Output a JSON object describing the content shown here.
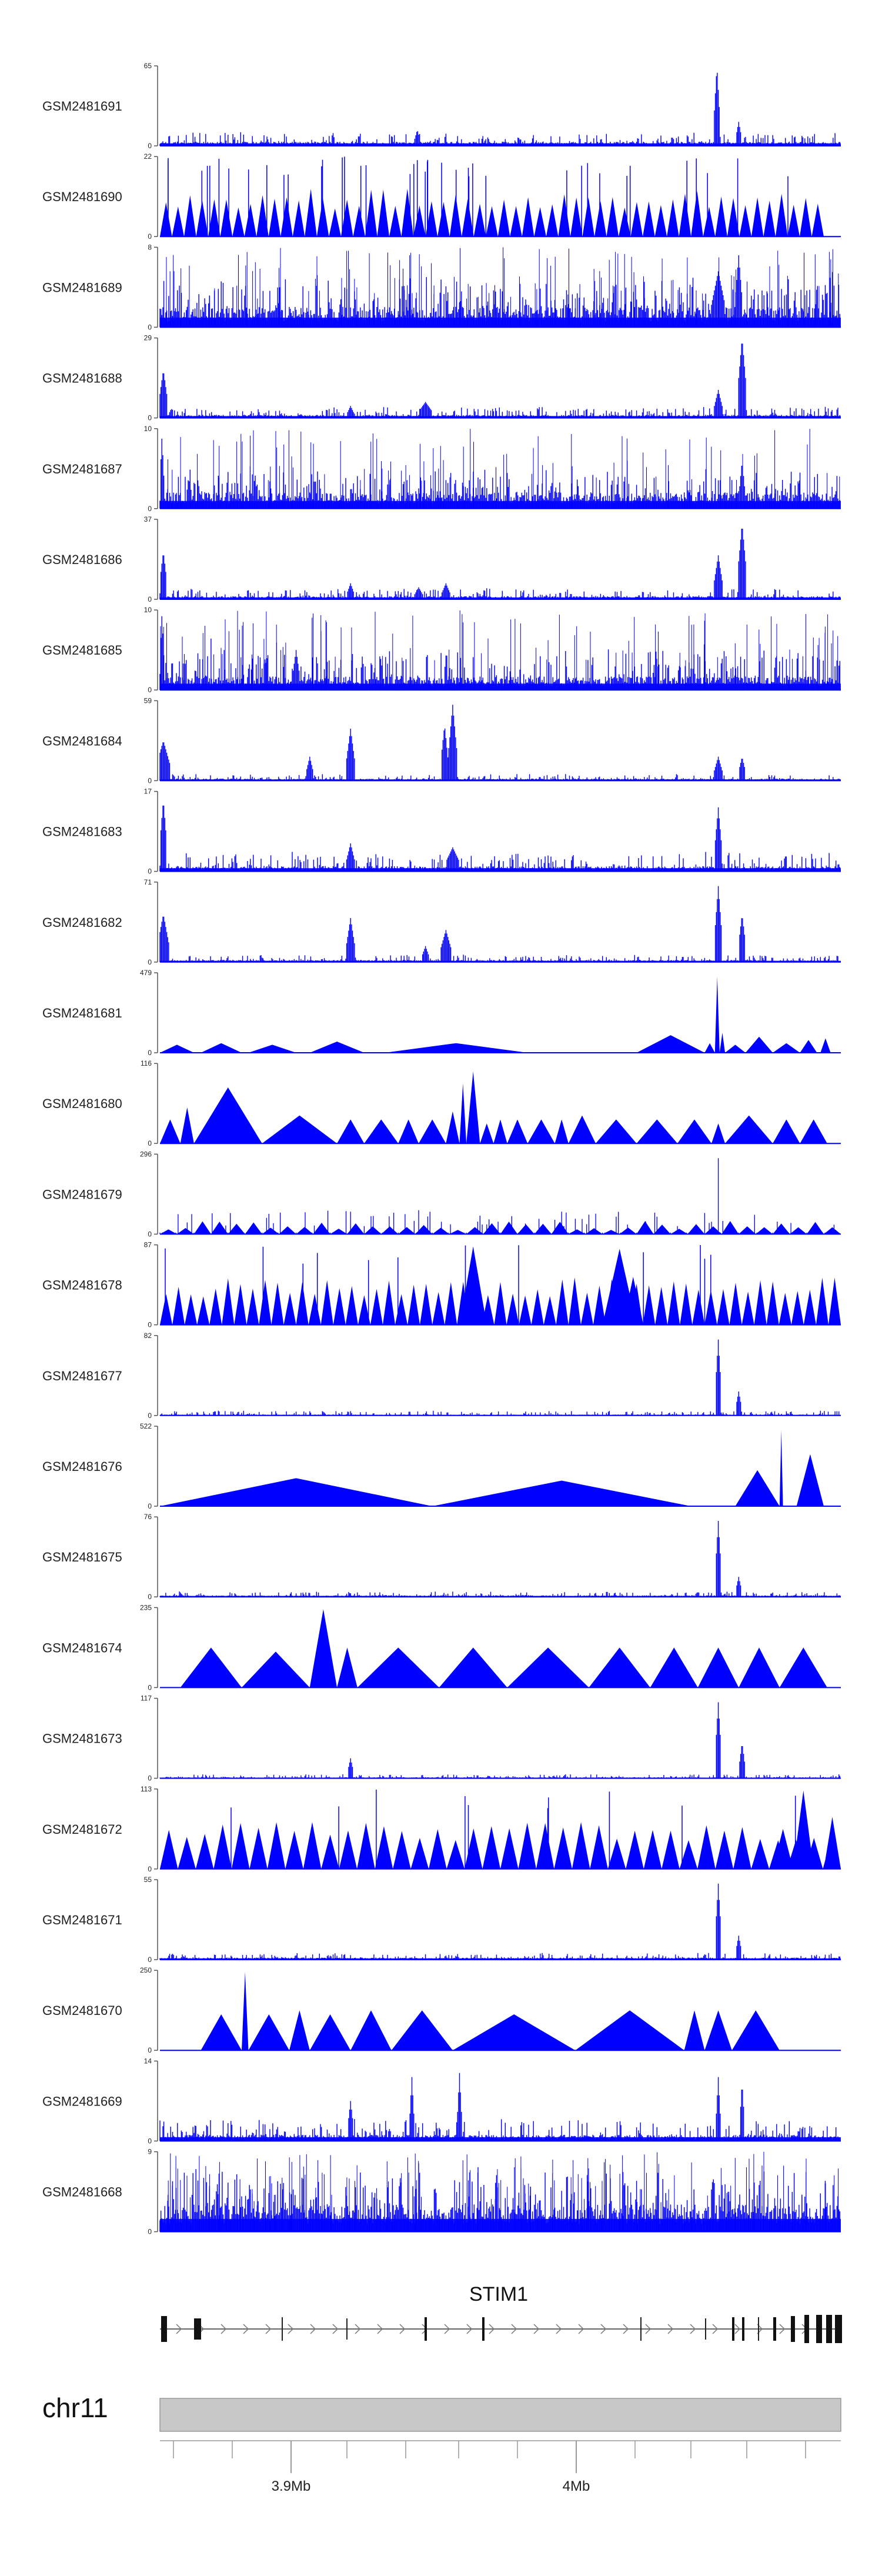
{
  "chart_data": {
    "type": "area",
    "tracks": [
      {
        "name": "GSM2481691",
        "ymax": "65",
        "max": 65,
        "style": "noise",
        "base": 0.04,
        "noise": 0.12,
        "peaks": [
          [
            0.818,
            1.0,
            0.004
          ],
          [
            0.85,
            0.3,
            0.004
          ],
          [
            0.378,
            0.2,
            0.004
          ]
        ]
      },
      {
        "name": "GSM2481690",
        "ymax": "22",
        "max": 22,
        "style": "triangles",
        "count": 55,
        "spikes": 40,
        "end": 0.975
      },
      {
        "name": "GSM2481689",
        "ymax": "8",
        "max": 8,
        "style": "dense",
        "base": 0.15,
        "noise": 0.4,
        "spikes": 120,
        "peaks": [
          [
            0.82,
            0.7,
            0.01
          ],
          [
            0.85,
            0.9,
            0.005
          ]
        ]
      },
      {
        "name": "GSM2481688",
        "ymax": "29",
        "max": 29,
        "style": "noise",
        "base": 0.03,
        "noise": 0.1,
        "peaks": [
          [
            0.005,
            0.6,
            0.006
          ],
          [
            0.82,
            0.35,
            0.006
          ],
          [
            0.855,
            1.0,
            0.006
          ],
          [
            0.39,
            0.2,
            0.01
          ],
          [
            0.28,
            0.15,
            0.005
          ]
        ]
      },
      {
        "name": "GSM2481687",
        "ymax": "10",
        "max": 10,
        "style": "dense",
        "base": 0.12,
        "noise": 0.3,
        "spikes": 90,
        "peaks": [
          [
            0.003,
            0.9,
            0.003
          ],
          [
            0.855,
            0.6,
            0.004
          ]
        ]
      },
      {
        "name": "GSM2481686",
        "ymax": "37",
        "max": 37,
        "style": "noise",
        "base": 0.03,
        "noise": 0.1,
        "peaks": [
          [
            0.82,
            0.55,
            0.006
          ],
          [
            0.855,
            0.95,
            0.006
          ],
          [
            0.005,
            0.6,
            0.005
          ],
          [
            0.28,
            0.2,
            0.005
          ],
          [
            0.42,
            0.2,
            0.006
          ],
          [
            0.38,
            0.15,
            0.006
          ]
        ]
      },
      {
        "name": "GSM2481685",
        "ymax": "10",
        "max": 10,
        "style": "dense",
        "base": 0.1,
        "noise": 0.35,
        "spikes": 100,
        "peaks": [
          [
            0.003,
            0.95,
            0.003
          ],
          [
            0.2,
            0.5,
            0.005
          ]
        ]
      },
      {
        "name": "GSM2481684",
        "ymax": "59",
        "max": 59,
        "style": "noise",
        "base": 0.02,
        "noise": 0.06,
        "peaks": [
          [
            0.43,
            0.95,
            0.006
          ],
          [
            0.418,
            0.7,
            0.005
          ],
          [
            0.28,
            0.65,
            0.006
          ],
          [
            0.005,
            0.5,
            0.01
          ],
          [
            0.22,
            0.3,
            0.005
          ],
          [
            0.82,
            0.3,
            0.006
          ],
          [
            0.855,
            0.3,
            0.005
          ]
        ]
      },
      {
        "name": "GSM2481683",
        "ymax": "17",
        "max": 17,
        "style": "noise",
        "base": 0.05,
        "noise": 0.18,
        "peaks": [
          [
            0.82,
            0.8,
            0.005
          ],
          [
            0.005,
            0.9,
            0.005
          ],
          [
            0.28,
            0.35,
            0.006
          ],
          [
            0.43,
            0.3,
            0.01
          ]
        ]
      },
      {
        "name": "GSM2481682",
        "ymax": "71",
        "max": 71,
        "style": "noise",
        "base": 0.02,
        "noise": 0.07,
        "peaks": [
          [
            0.82,
            0.95,
            0.005
          ],
          [
            0.855,
            0.6,
            0.005
          ],
          [
            0.005,
            0.6,
            0.008
          ],
          [
            0.28,
            0.55,
            0.006
          ],
          [
            0.42,
            0.4,
            0.008
          ],
          [
            0.39,
            0.2,
            0.005
          ]
        ]
      },
      {
        "name": "GSM2481681",
        "ymax": "479",
        "max": 479,
        "style": "sparse",
        "tris": [
          [
            0.0,
            0.05,
            0.1
          ],
          [
            0.06,
            0.12,
            0.12
          ],
          [
            0.13,
            0.2,
            0.1
          ],
          [
            0.22,
            0.3,
            0.14
          ],
          [
            0.33,
            0.54,
            0.12
          ],
          [
            0.7,
            0.8,
            0.22
          ],
          [
            0.8,
            0.815,
            0.12
          ],
          [
            0.815,
            0.822,
            0.95
          ],
          [
            0.822,
            0.83,
            0.25
          ],
          [
            0.83,
            0.86,
            0.1
          ],
          [
            0.86,
            0.9,
            0.2
          ],
          [
            0.9,
            0.94,
            0.12
          ],
          [
            0.94,
            0.965,
            0.16
          ],
          [
            0.97,
            0.985,
            0.18
          ]
        ]
      },
      {
        "name": "GSM2481680",
        "ymax": "116",
        "max": 116,
        "style": "sparse",
        "tris": [
          [
            0.0,
            0.03,
            0.3
          ],
          [
            0.03,
            0.05,
            0.45
          ],
          [
            0.05,
            0.15,
            0.7
          ],
          [
            0.15,
            0.26,
            0.35
          ],
          [
            0.26,
            0.3,
            0.3
          ],
          [
            0.3,
            0.35,
            0.3
          ],
          [
            0.35,
            0.38,
            0.3
          ],
          [
            0.38,
            0.42,
            0.3
          ],
          [
            0.42,
            0.44,
            0.4
          ],
          [
            0.44,
            0.45,
            0.75
          ],
          [
            0.45,
            0.47,
            0.9
          ],
          [
            0.47,
            0.49,
            0.25
          ],
          [
            0.49,
            0.51,
            0.3
          ],
          [
            0.51,
            0.54,
            0.3
          ],
          [
            0.54,
            0.58,
            0.3
          ],
          [
            0.58,
            0.6,
            0.3
          ],
          [
            0.6,
            0.64,
            0.35
          ],
          [
            0.64,
            0.7,
            0.3
          ],
          [
            0.7,
            0.76,
            0.3
          ],
          [
            0.76,
            0.81,
            0.3
          ],
          [
            0.81,
            0.83,
            0.25
          ],
          [
            0.83,
            0.9,
            0.35
          ],
          [
            0.9,
            0.94,
            0.3
          ],
          [
            0.94,
            0.98,
            0.3
          ]
        ]
      },
      {
        "name": "GSM2481679",
        "ymax": "296",
        "max": 296,
        "style": "mixed",
        "count": 40,
        "peaks": [
          [
            0.82,
            0.95,
            0.003
          ],
          [
            0.38,
            0.3,
            0.003
          ],
          [
            0.36,
            0.25,
            0.003
          ]
        ]
      },
      {
        "name": "GSM2481678",
        "ymax": "87",
        "max": 87,
        "style": "triangles",
        "count": 55,
        "spikes": 12,
        "end": 1.0,
        "big": [
          [
            0.44,
            0.48,
            0.98
          ],
          [
            0.65,
            0.7,
            0.95
          ],
          [
            0.68,
            0.71,
            0.6
          ]
        ]
      },
      {
        "name": "GSM2481677",
        "ymax": "82",
        "max": 82,
        "style": "noise",
        "base": 0.01,
        "noise": 0.05,
        "peaks": [
          [
            0.82,
            0.95,
            0.004
          ],
          [
            0.85,
            0.3,
            0.004
          ]
        ]
      },
      {
        "name": "GSM2481676",
        "ymax": "522",
        "max": 522,
        "style": "sparse",
        "tris": [
          [
            0.0,
            0.4,
            0.35
          ],
          [
            0.4,
            0.78,
            0.32
          ],
          [
            0.78,
            0.845,
            0.0
          ],
          [
            0.845,
            0.91,
            0.45
          ],
          [
            0.91,
            0.915,
            0.95
          ],
          [
            0.915,
            0.935,
            0.0
          ],
          [
            0.935,
            0.975,
            0.65
          ]
        ]
      },
      {
        "name": "GSM2481675",
        "ymax": "76",
        "max": 76,
        "style": "noise",
        "base": 0.015,
        "noise": 0.05,
        "peaks": [
          [
            0.82,
            0.95,
            0.004
          ],
          [
            0.85,
            0.25,
            0.004
          ]
        ]
      },
      {
        "name": "GSM2481674",
        "ymax": "235",
        "max": 235,
        "style": "sparse",
        "tris": [
          [
            0.03,
            0.12,
            0.5
          ],
          [
            0.12,
            0.22,
            0.45
          ],
          [
            0.22,
            0.26,
            0.98
          ],
          [
            0.26,
            0.29,
            0.5
          ],
          [
            0.29,
            0.41,
            0.5
          ],
          [
            0.41,
            0.51,
            0.5
          ],
          [
            0.51,
            0.63,
            0.5
          ],
          [
            0.63,
            0.72,
            0.5
          ],
          [
            0.72,
            0.79,
            0.5
          ],
          [
            0.79,
            0.85,
            0.5
          ],
          [
            0.85,
            0.91,
            0.5
          ],
          [
            0.91,
            0.98,
            0.5
          ]
        ]
      },
      {
        "name": "GSM2481673",
        "ymax": "117",
        "max": 117,
        "style": "noise",
        "base": 0.01,
        "noise": 0.04,
        "peaks": [
          [
            0.82,
            0.95,
            0.004
          ],
          [
            0.855,
            0.45,
            0.004
          ],
          [
            0.28,
            0.25,
            0.004
          ]
        ]
      },
      {
        "name": "GSM2481672",
        "ymax": "113",
        "max": 113,
        "style": "triangles",
        "count": 38,
        "spikes": 10,
        "end": 1.0,
        "big": [
          [
            0.93,
            0.96,
            0.98
          ],
          [
            0.975,
            1.0,
            0.65
          ],
          [
            0.9,
            0.93,
            0.5
          ]
        ]
      },
      {
        "name": "GSM2481671",
        "ymax": "55",
        "max": 55,
        "style": "noise",
        "base": 0.02,
        "noise": 0.06,
        "peaks": [
          [
            0.82,
            0.95,
            0.004
          ],
          [
            0.85,
            0.3,
            0.004
          ]
        ]
      },
      {
        "name": "GSM2481670",
        "ymax": "250",
        "max": 250,
        "style": "sparse",
        "tris": [
          [
            0.06,
            0.12,
            0.45
          ],
          [
            0.12,
            0.13,
            0.98
          ],
          [
            0.13,
            0.19,
            0.45
          ],
          [
            0.19,
            0.22,
            0.5
          ],
          [
            0.22,
            0.28,
            0.45
          ],
          [
            0.28,
            0.34,
            0.5
          ],
          [
            0.34,
            0.43,
            0.5
          ],
          [
            0.43,
            0.61,
            0.45
          ],
          [
            0.61,
            0.77,
            0.5
          ],
          [
            0.77,
            0.8,
            0.5
          ],
          [
            0.8,
            0.84,
            0.5
          ],
          [
            0.84,
            0.91,
            0.5
          ]
        ]
      },
      {
        "name": "GSM2481669",
        "ymax": "14",
        "max": 14,
        "style": "noise",
        "base": 0.06,
        "noise": 0.2,
        "peaks": [
          [
            0.37,
            0.8,
            0.003
          ],
          [
            0.44,
            0.85,
            0.003
          ],
          [
            0.82,
            0.8,
            0.003
          ],
          [
            0.855,
            0.75,
            0.003
          ],
          [
            0.28,
            0.5,
            0.004
          ]
        ]
      },
      {
        "name": "GSM2481668",
        "ymax": "9",
        "max": 9,
        "style": "dense",
        "base": 0.2,
        "noise": 0.5,
        "spikes": 140,
        "peaks": []
      }
    ],
    "gene": {
      "name": "STIM1"
    },
    "chromosome": "chr11",
    "xticks": [
      "3.9Mb",
      "4Mb"
    ],
    "colors": {
      "signal": "#0000ff",
      "axis": "#555555",
      "ideogram": "#c8c8c8"
    }
  }
}
